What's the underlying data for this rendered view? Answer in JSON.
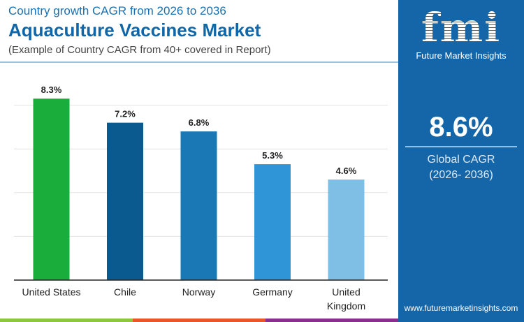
{
  "header": {
    "subtitle": "Country growth CAGR from 2026 to 2036",
    "title": "Aquaculture Vaccines Market",
    "note": "(Example of Country CAGR from 40+ covered in Report)"
  },
  "panel": {
    "logo_text": "fmi",
    "brand": "Future Market Insights",
    "global_value": "8.6%",
    "global_label": "Global CAGR",
    "global_period": "(2026- 2036)",
    "url": "www.futuremarketinsights.com",
    "bg_color": "#1466a8"
  },
  "chart_data": {
    "type": "bar",
    "categories": [
      "United States",
      "Chile",
      "Norway",
      "Germany",
      "United Kingdom"
    ],
    "values": [
      8.3,
      7.2,
      6.8,
      5.3,
      4.6
    ],
    "labels": [
      "8.3%",
      "7.2%",
      "6.8%",
      "5.3%",
      "4.6%"
    ],
    "colors": [
      "#1aad3c",
      "#0b5a8f",
      "#1a78b4",
      "#3095d6",
      "#80bfe5"
    ],
    "ylim": [
      0,
      9
    ],
    "grid": true,
    "yticks_shown": false
  },
  "footer_stripe_colors": [
    "#8dc63f",
    "#e8562a",
    "#8b2f8f"
  ]
}
